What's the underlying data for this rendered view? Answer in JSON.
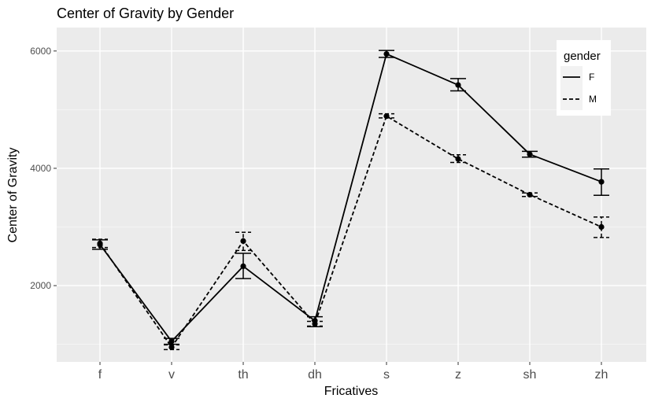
{
  "chart_data": {
    "type": "line",
    "title": "Center of Gravity by Gender",
    "xlabel": "Fricatives",
    "ylabel": "Center of Gravity",
    "categories": [
      "f",
      "v",
      "th",
      "dh",
      "s",
      "z",
      "sh",
      "zh"
    ],
    "ylim": [
      700,
      6400
    ],
    "yticks": [
      2000,
      4000,
      6000
    ],
    "grid": true,
    "legend": {
      "title": "gender",
      "position": "top-right"
    },
    "series": [
      {
        "name": "F",
        "linestyle": "solid",
        "values": [
          2700,
          1050,
          2330,
          1400,
          5950,
          5420,
          4240,
          3770
        ],
        "err_low": [
          2620,
          1000,
          2120,
          1300,
          5890,
          5320,
          4190,
          3540
        ],
        "err_high": [
          2780,
          1100,
          2550,
          1470,
          6010,
          5530,
          4290,
          3990
        ]
      },
      {
        "name": "M",
        "linestyle": "dashed",
        "values": [
          2720,
          950,
          2760,
          1350,
          4890,
          4160,
          3550,
          3000
        ],
        "err_low": [
          2650,
          910,
          2600,
          1310,
          4860,
          4100,
          3520,
          2820
        ],
        "err_high": [
          2790,
          990,
          2910,
          1390,
          4930,
          4230,
          3580,
          3170
        ]
      }
    ]
  }
}
